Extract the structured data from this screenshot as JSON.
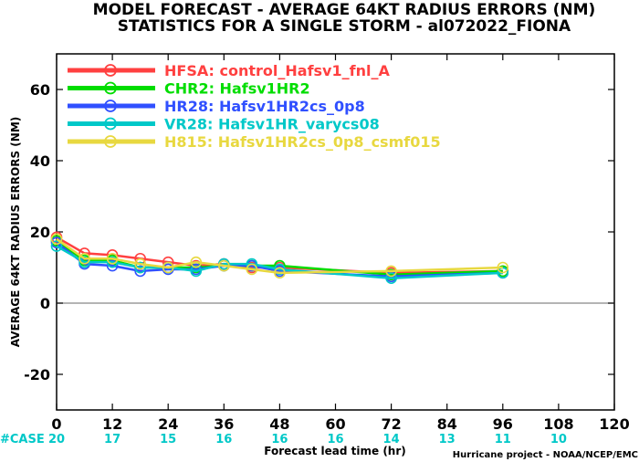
{
  "title_line1": "MODEL FORECAST - AVERAGE 64KT RADIUS ERRORS (NM)",
  "title_line2": "STATISTICS FOR A SINGLE STORM - al072022_FIONA",
  "case_label": "#CASE",
  "credit": "Hurricane project - NOAA/NCEP/EMC",
  "colors": {
    "case_text": "#00c8c8",
    "zero_line": "#888888"
  },
  "chart_data": {
    "type": "line",
    "xlabel": "Forecast lead time (hr)",
    "ylabel": "AVERAGE 64KT RADIUS ERRORS (NM)",
    "xlim": [
      0,
      120
    ],
    "ylim": [
      -30,
      70
    ],
    "x_ticks": [
      0,
      12,
      24,
      36,
      48,
      60,
      72,
      84,
      96,
      108,
      120
    ],
    "y_ticks": [
      -20,
      0,
      20,
      40,
      60
    ],
    "case_hours": [
      0,
      12,
      24,
      36,
      48,
      60,
      72,
      84,
      96,
      108
    ],
    "case_counts": [
      "20",
      "17",
      "15",
      "16",
      "16",
      "16",
      "14",
      "13",
      "11",
      "10"
    ],
    "series": [
      {
        "name": "HFSA",
        "label": "HFSA: control_Hafsv1_fnl_A",
        "color": "#ff4040",
        "x": [
          0,
          6,
          12,
          18,
          24,
          30,
          36,
          42,
          48,
          72,
          96
        ],
        "y": [
          18.5,
          14,
          13.5,
          12.5,
          11.5,
          10.5,
          11,
          10,
          10,
          8.5,
          9
        ]
      },
      {
        "name": "CHR2",
        "label": "CHR2: Hafsv1HR2",
        "color": "#00dd00",
        "x": [
          0,
          6,
          12,
          18,
          24,
          30,
          36,
          42,
          48,
          72,
          96
        ],
        "y": [
          17.5,
          12,
          12,
          10,
          10,
          10,
          10.5,
          10.5,
          10.5,
          8,
          9
        ]
      },
      {
        "name": "HR28",
        "label": "HR28: Hafsv1HR2cs_0p8",
        "color": "#3050ff",
        "x": [
          0,
          6,
          12,
          18,
          24,
          30,
          36,
          42,
          48,
          72,
          96
        ],
        "y": [
          17,
          11,
          10.5,
          9,
          9.5,
          9.5,
          10.5,
          10.5,
          9,
          7.5,
          8.5
        ]
      },
      {
        "name": "VR28",
        "label": "VR28: Hafsv1HR_varycs08",
        "color": "#00c8c8",
        "x": [
          0,
          6,
          12,
          18,
          24,
          30,
          36,
          42,
          48,
          72,
          96
        ],
        "y": [
          16,
          11.5,
          11.5,
          10,
          10,
          9,
          11,
          11,
          9.5,
          7,
          8.5
        ]
      },
      {
        "name": "H815",
        "label": "H815: Hafsv1HR2cs_0p8_csmf015",
        "color": "#e8d840",
        "x": [
          0,
          6,
          12,
          18,
          24,
          30,
          36,
          42,
          48,
          72,
          96
        ],
        "y": [
          18,
          12.5,
          12.5,
          11,
          10,
          11.5,
          10.5,
          9.5,
          8.5,
          9,
          10
        ]
      }
    ]
  }
}
